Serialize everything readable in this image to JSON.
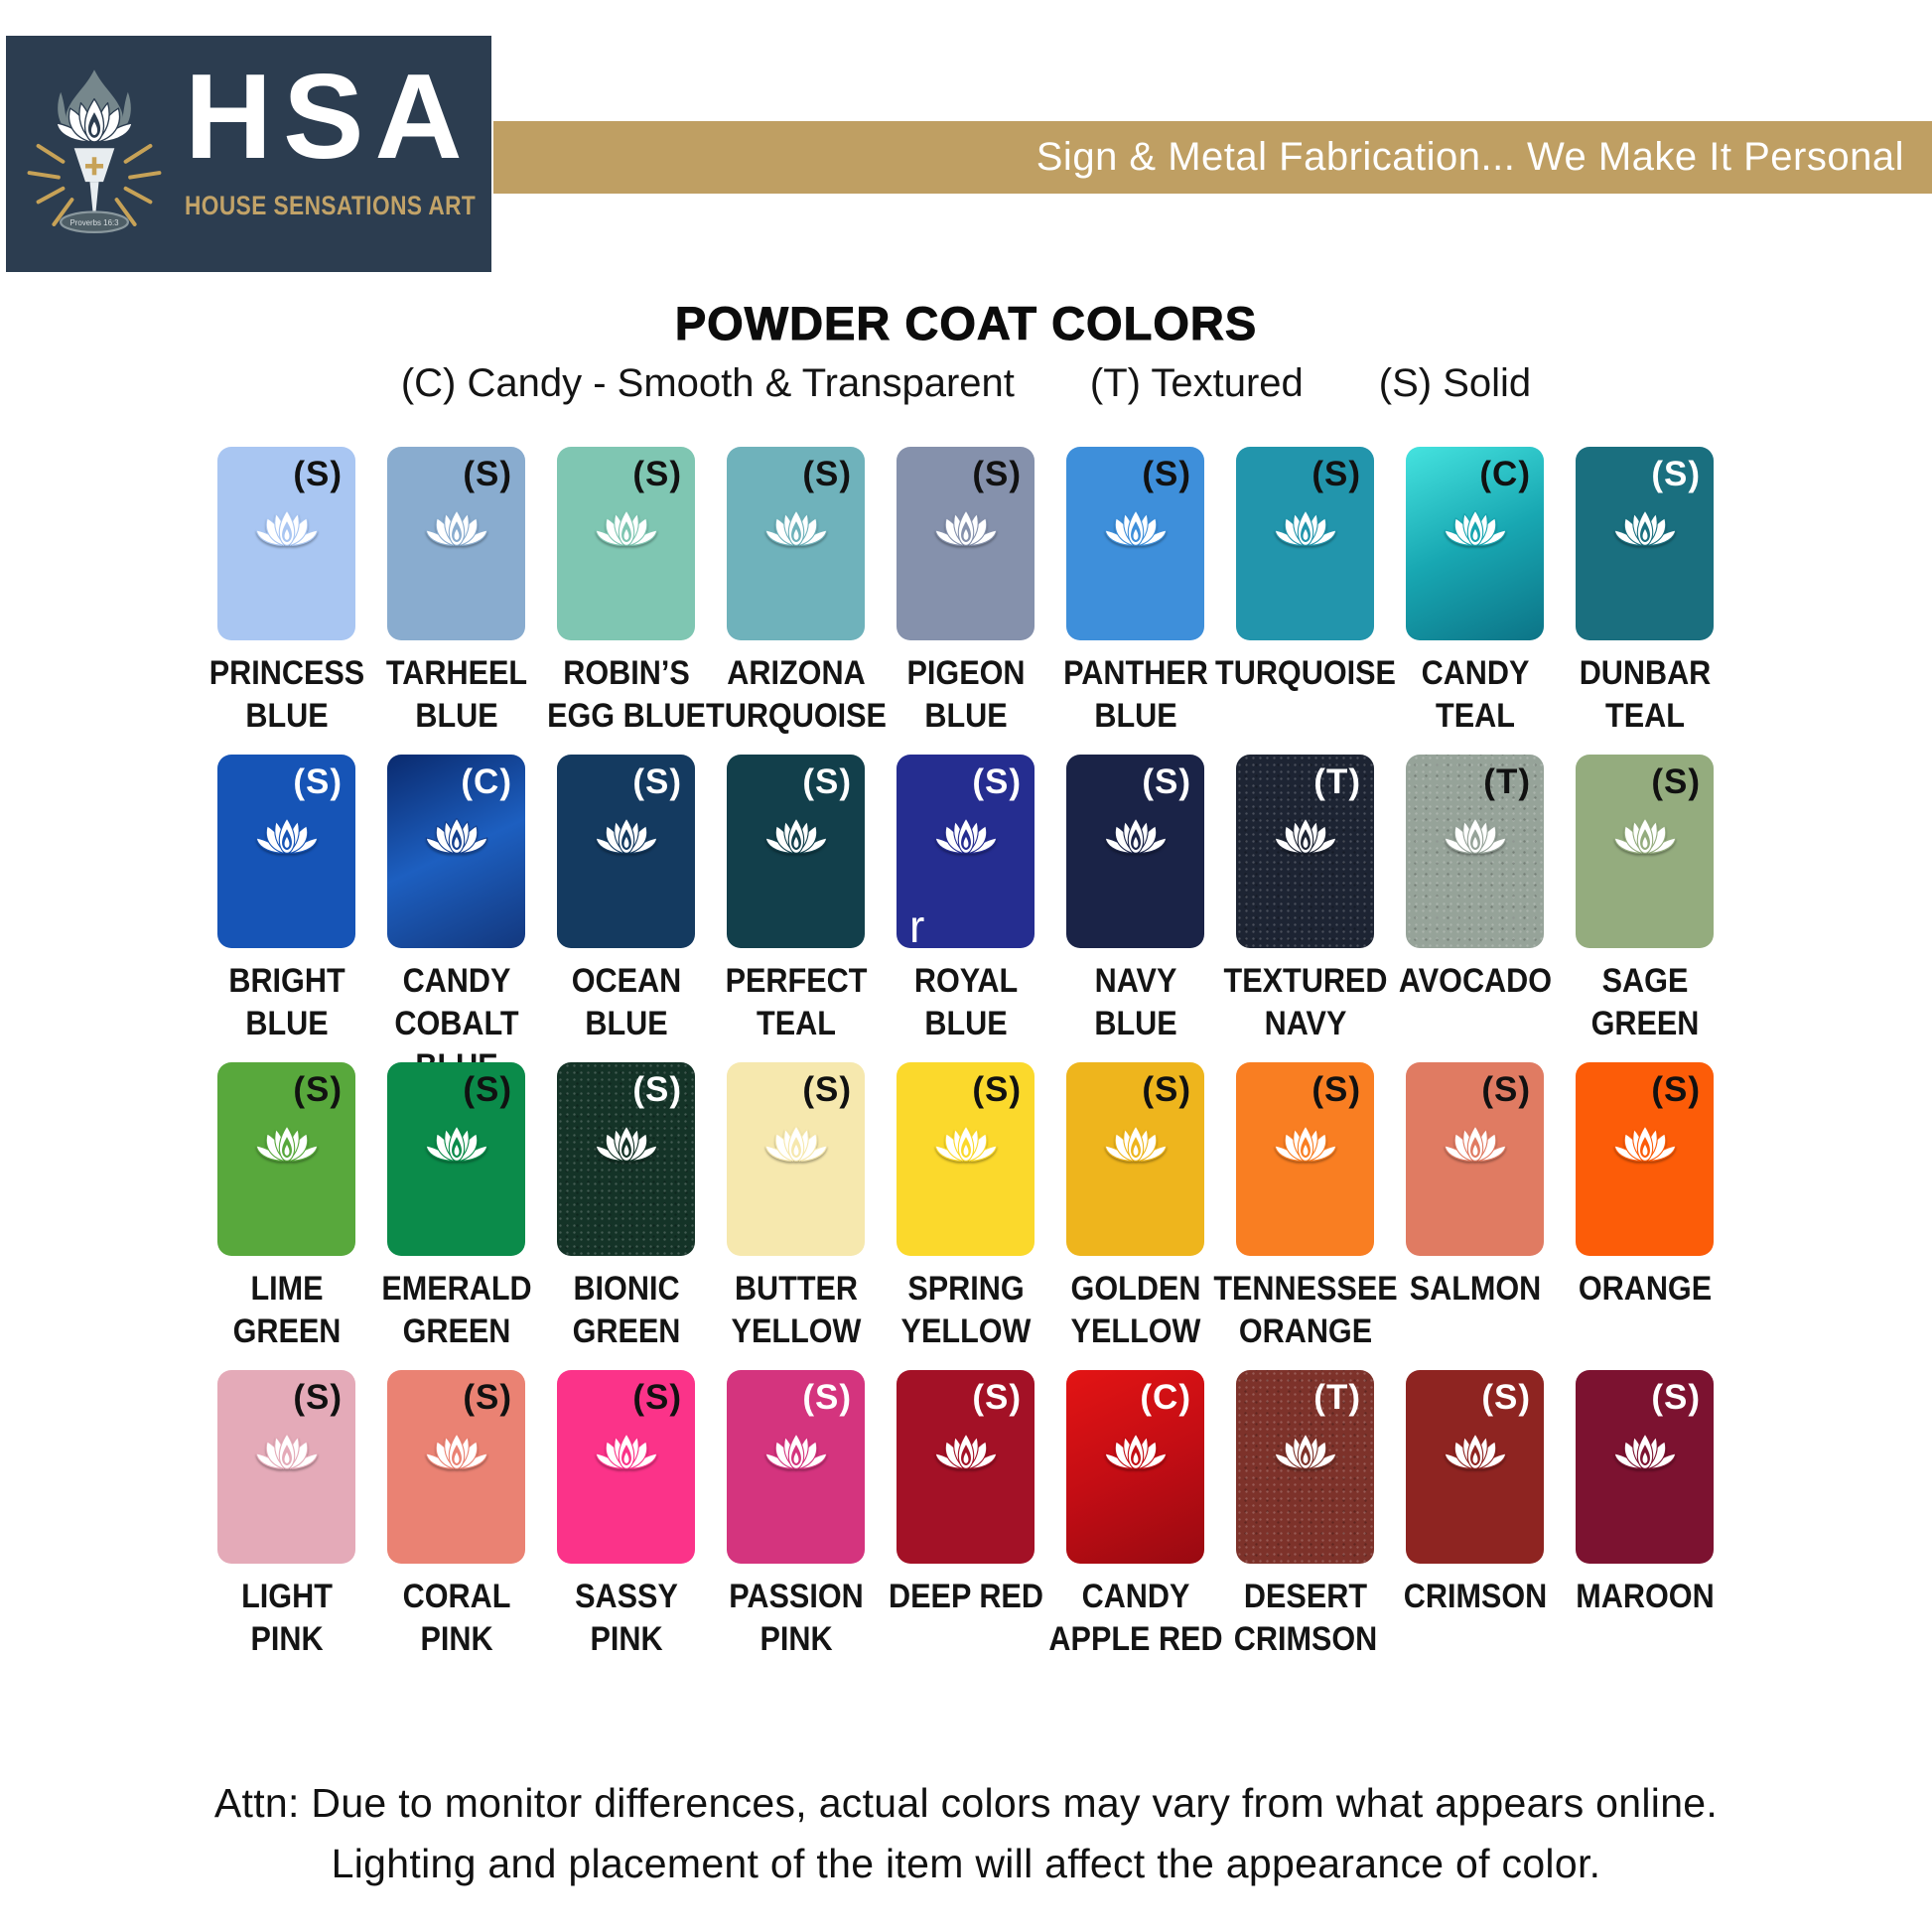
{
  "page": {
    "background": "#ffffff"
  },
  "header": {
    "logo": {
      "abbr": "HSA",
      "name": "HOUSE SENSATIONS ART",
      "verse": "Proverbs 16:3",
      "box_color": "#2c3d50",
      "gold": "#c2a368"
    },
    "banner": {
      "text": "Sign & Metal Fabrication... We Make It Personal",
      "bg": "#bf9f63",
      "text_color": "#ffffff"
    }
  },
  "title": "POWDER COAT COLORS",
  "legend": [
    {
      "code": "(C)",
      "label": "Candy - Smooth & Transparent"
    },
    {
      "code": "(T)",
      "label": "Textured"
    },
    {
      "code": "(S)",
      "label": "Solid"
    }
  ],
  "swatches": [
    {
      "id": "princess-blue",
      "name_lines": [
        "PRINCESS",
        "BLUE"
      ],
      "type": "(S)",
      "finish": "solid",
      "color": "#a9c6f2",
      "type_label_color": "#111111"
    },
    {
      "id": "tarheel-blue",
      "name_lines": [
        "TARHEEL",
        "BLUE"
      ],
      "type": "(S)",
      "finish": "solid",
      "color": "#89accf",
      "type_label_color": "#111111"
    },
    {
      "id": "robins-egg-blue",
      "name_lines": [
        "ROBIN’S",
        "EGG BLUE"
      ],
      "type": "(S)",
      "finish": "solid",
      "color": "#7fc6b2",
      "type_label_color": "#111111"
    },
    {
      "id": "arizona-turquoise",
      "name_lines": [
        "ARIZONA",
        "TURQUOISE"
      ],
      "type": "(S)",
      "finish": "solid",
      "color": "#6fb2bb",
      "type_label_color": "#111111"
    },
    {
      "id": "pigeon-blue",
      "name_lines": [
        "PIGEON",
        "BLUE"
      ],
      "type": "(S)",
      "finish": "solid",
      "color": "#8591ac",
      "type_label_color": "#111111"
    },
    {
      "id": "panther-blue",
      "name_lines": [
        "PANTHER",
        "BLUE"
      ],
      "type": "(S)",
      "finish": "solid",
      "color": "#3e8fda",
      "type_label_color": "#111111"
    },
    {
      "id": "turquoise",
      "name_lines": [
        "TURQUOISE"
      ],
      "type": "(S)",
      "finish": "solid",
      "color": "#2295ac",
      "type_label_color": "#111111"
    },
    {
      "id": "candy-teal",
      "name_lines": [
        "CANDY",
        "TEAL"
      ],
      "type": "(C)",
      "finish": "candy",
      "color": "#17a5b0",
      "gradient": [
        "#45e3df",
        "#18a7b2",
        "#0c7487"
      ],
      "type_label_color": "#111111"
    },
    {
      "id": "dunbar-teal",
      "name_lines": [
        "DUNBAR",
        "TEAL"
      ],
      "type": "(S)",
      "finish": "solid",
      "color": "#1a6f7f",
      "type_label_color": "#ffffff"
    },
    {
      "id": "bright-blue",
      "name_lines": [
        "BRIGHT",
        "BLUE"
      ],
      "type": "(S)",
      "finish": "solid",
      "color": "#1654b6",
      "type_label_color": "#ffffff"
    },
    {
      "id": "candy-cobalt-blue",
      "name_lines": [
        "CANDY",
        "COBALT BLUE"
      ],
      "type": "(C)",
      "finish": "candy",
      "color": "#14408f",
      "gradient": [
        "#0a2a6e",
        "#1d5fc0",
        "#13387e"
      ],
      "type_label_color": "#ffffff"
    },
    {
      "id": "ocean-blue",
      "name_lines": [
        "OCEAN",
        "BLUE"
      ],
      "type": "(S)",
      "finish": "solid",
      "color": "#143a60",
      "type_label_color": "#ffffff"
    },
    {
      "id": "perfect-teal",
      "name_lines": [
        "PERFECT",
        "TEAL"
      ],
      "type": "(S)",
      "finish": "solid",
      "color": "#123f4b",
      "type_label_color": "#ffffff"
    },
    {
      "id": "royal-blue",
      "name_lines": [
        "ROYAL",
        "BLUE"
      ],
      "type": "(S)",
      "finish": "solid",
      "color": "#252d90",
      "type_label_color": "#ffffff"
    },
    {
      "id": "navy-blue",
      "name_lines": [
        "NAVY",
        "BLUE"
      ],
      "type": "(S)",
      "finish": "solid",
      "color": "#1a2347",
      "type_label_color": "#ffffff"
    },
    {
      "id": "textured-navy",
      "name_lines": [
        "TEXTURED",
        "NAVY"
      ],
      "type": "(T)",
      "finish": "textured",
      "color": "#1d2433",
      "type_label_color": "#ffffff"
    },
    {
      "id": "avocado",
      "name_lines": [
        "AVOCADO"
      ],
      "type": "(T)",
      "finish": "textured",
      "color": "#96a399",
      "type_label_color": "#111111"
    },
    {
      "id": "sage-green",
      "name_lines": [
        "SAGE",
        "GREEN"
      ],
      "type": "(S)",
      "finish": "solid",
      "color": "#94ac7e",
      "type_label_color": "#111111"
    },
    {
      "id": "lime-green",
      "name_lines": [
        "LIME",
        "GREEN"
      ],
      "type": "(S)",
      "finish": "solid",
      "color": "#58a83c",
      "type_label_color": "#111111"
    },
    {
      "id": "emerald-green",
      "name_lines": [
        "EMERALD",
        "GREEN"
      ],
      "type": "(S)",
      "finish": "solid",
      "color": "#0b8b4a",
      "type_label_color": "#111111"
    },
    {
      "id": "bionic-green",
      "name_lines": [
        "BIONIC",
        "GREEN"
      ],
      "type": "(S)",
      "finish": "solid",
      "color": "#143327",
      "speckle": true,
      "type_label_color": "#ffffff"
    },
    {
      "id": "butter-yellow",
      "name_lines": [
        "BUTTER",
        "YELLOW"
      ],
      "type": "(S)",
      "finish": "solid",
      "color": "#f6e8ae",
      "type_label_color": "#111111"
    },
    {
      "id": "spring-yellow",
      "name_lines": [
        "SPRING",
        "YELLOW"
      ],
      "type": "(S)",
      "finish": "solid",
      "color": "#fbd92c",
      "type_label_color": "#111111"
    },
    {
      "id": "golden-yellow",
      "name_lines": [
        "GOLDEN",
        "YELLOW"
      ],
      "type": "(S)",
      "finish": "solid",
      "color": "#eeb51d",
      "type_label_color": "#111111"
    },
    {
      "id": "tennessee-orange",
      "name_lines": [
        "TENNESSEE",
        "ORANGE"
      ],
      "type": "(S)",
      "finish": "solid",
      "color": "#f97e22",
      "type_label_color": "#111111"
    },
    {
      "id": "salmon",
      "name_lines": [
        "SALMON"
      ],
      "type": "(S)",
      "finish": "solid",
      "color": "#e07b62",
      "type_label_color": "#111111"
    },
    {
      "id": "orange",
      "name_lines": [
        "ORANGE"
      ],
      "type": "(S)",
      "finish": "solid",
      "color": "#fc5c08",
      "type_label_color": "#111111"
    },
    {
      "id": "light-pink",
      "name_lines": [
        "LIGHT",
        "PINK"
      ],
      "type": "(S)",
      "finish": "solid",
      "color": "#e4aab8",
      "type_label_color": "#111111"
    },
    {
      "id": "coral-pink",
      "name_lines": [
        "CORAL",
        "PINK"
      ],
      "type": "(S)",
      "finish": "solid",
      "color": "#ea8273",
      "type_label_color": "#111111"
    },
    {
      "id": "sassy-pink",
      "name_lines": [
        "SASSY",
        "PINK"
      ],
      "type": "(S)",
      "finish": "solid",
      "color": "#fb3389",
      "type_label_color": "#111111"
    },
    {
      "id": "passion-pink",
      "name_lines": [
        "PASSION",
        "PINK"
      ],
      "type": "(S)",
      "finish": "solid",
      "color": "#d4347e",
      "type_label_color": "#ffffff"
    },
    {
      "id": "deep-red",
      "name_lines": [
        "DEEP RED"
      ],
      "type": "(S)",
      "finish": "solid",
      "color": "#a31126",
      "type_label_color": "#ffffff"
    },
    {
      "id": "candy-apple-red",
      "name_lines": [
        "CANDY",
        "APPLE RED"
      ],
      "type": "(C)",
      "finish": "candy",
      "color": "#c30d14",
      "gradient": [
        "#e31414",
        "#c30d14",
        "#990a11"
      ],
      "type_label_color": "#ffffff"
    },
    {
      "id": "desert-crimson",
      "name_lines": [
        "DESERT",
        "CRIMSON"
      ],
      "type": "(T)",
      "finish": "textured",
      "color": "#7d322a",
      "type_label_color": "#ffffff"
    },
    {
      "id": "crimson",
      "name_lines": [
        "CRIMSON"
      ],
      "type": "(S)",
      "finish": "solid",
      "color": "#8e2421",
      "type_label_color": "#ffffff"
    },
    {
      "id": "maroon",
      "name_lines": [
        "MAROON"
      ],
      "type": "(S)",
      "finish": "solid",
      "color": "#7c1230",
      "type_label_color": "#ffffff"
    }
  ],
  "stray_character": "r",
  "footer": {
    "line1": "Attn: Due to monitor differences, actual colors may vary from what appears online.",
    "line2": "Lighting and placement of the item will affect the appearance of color."
  }
}
